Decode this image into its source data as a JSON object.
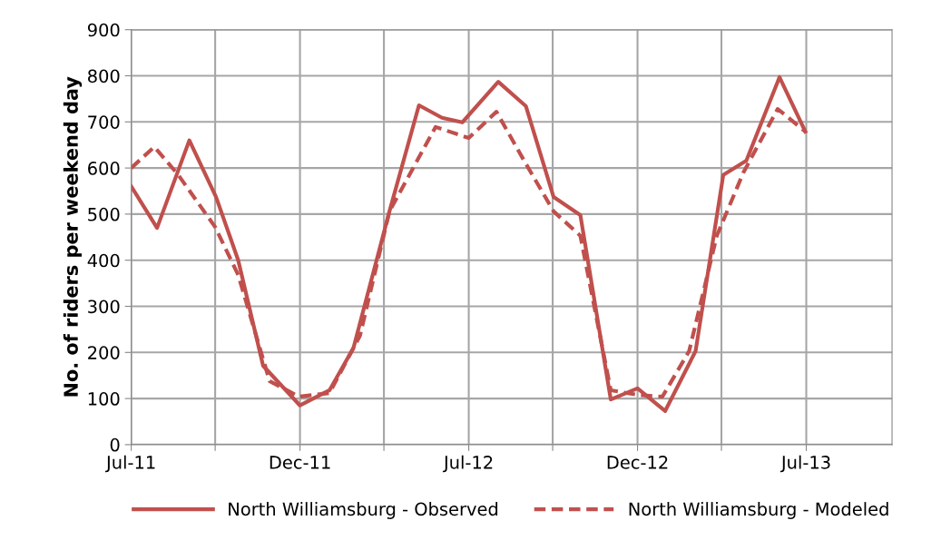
{
  "chart_data": {
    "type": "line",
    "ylabel": "No. of riders per weekend day",
    "xlim": [
      "2011-07-01",
      "2013-10-03"
    ],
    "xticks": [
      {
        "value": "2011-07-01",
        "label": "Jul-11"
      },
      {
        "value": "2011-09-30",
        "label": null
      },
      {
        "value": "2011-12-31",
        "label": "Dec-11"
      },
      {
        "value": "2012-03-31",
        "label": null
      },
      {
        "value": "2012-07-01",
        "label": "Jul-12"
      },
      {
        "value": "2012-09-30",
        "label": null
      },
      {
        "value": "2012-12-31",
        "label": "Dec-12"
      },
      {
        "value": "2013-04-01",
        "label": null
      },
      {
        "value": "2013-07-02",
        "label": "Jul-13"
      }
    ],
    "ylim": [
      0,
      900
    ],
    "yticks": [
      0,
      100,
      200,
      300,
      400,
      500,
      600,
      700,
      800,
      900
    ],
    "grid": true,
    "legend": "bottom",
    "marker": "none",
    "series": [
      {
        "name": "North Williamsburg - Observed",
        "color": "#c0504d",
        "line_style": "solid",
        "x": [
          "2011-07-01",
          "2011-07-29",
          "2011-09-02",
          "2011-10-01",
          "2011-10-25",
          "2011-11-21",
          "2011-12-31",
          "2012-02-01",
          "2012-02-27",
          "2012-04-06",
          "2012-05-08",
          "2012-06-02",
          "2012-06-24",
          "2012-08-02",
          "2012-09-01",
          "2012-10-01",
          "2012-10-30",
          "2012-12-02",
          "2012-12-31",
          "2013-01-30",
          "2013-03-04",
          "2013-04-03",
          "2013-04-28",
          "2013-06-03",
          "2013-07-01"
        ],
        "values": [
          560,
          470,
          660,
          537,
          400,
          171,
          85,
          118,
          210,
          506,
          736,
          709,
          699,
          787,
          734,
          537,
          498,
          98,
          122,
          73,
          203,
          585,
          616,
          797,
          679
        ]
      },
      {
        "name": "North Williamsburg - Modeled",
        "color": "#c0504d",
        "line_style": "dashed",
        "x": [
          "2011-07-01",
          "2011-07-26",
          "2011-08-21",
          "2011-09-30",
          "2011-10-25",
          "2011-11-28",
          "2011-12-30",
          "2012-02-01",
          "2012-03-05",
          "2012-04-06",
          "2012-05-26",
          "2012-07-01",
          "2012-07-31",
          "2012-08-30",
          "2012-10-01",
          "2012-10-30",
          "2012-12-02",
          "2012-12-31",
          "2013-01-27",
          "2013-02-25",
          "2013-03-27",
          "2013-04-25",
          "2013-06-01",
          "2013-07-01"
        ],
        "values": [
          600,
          646,
          585,
          472,
          368,
          138,
          104,
          112,
          236,
          506,
          689,
          665,
          722,
          616,
          506,
          453,
          118,
          108,
          104,
          203,
          453,
          591,
          728,
          679
        ]
      }
    ]
  }
}
